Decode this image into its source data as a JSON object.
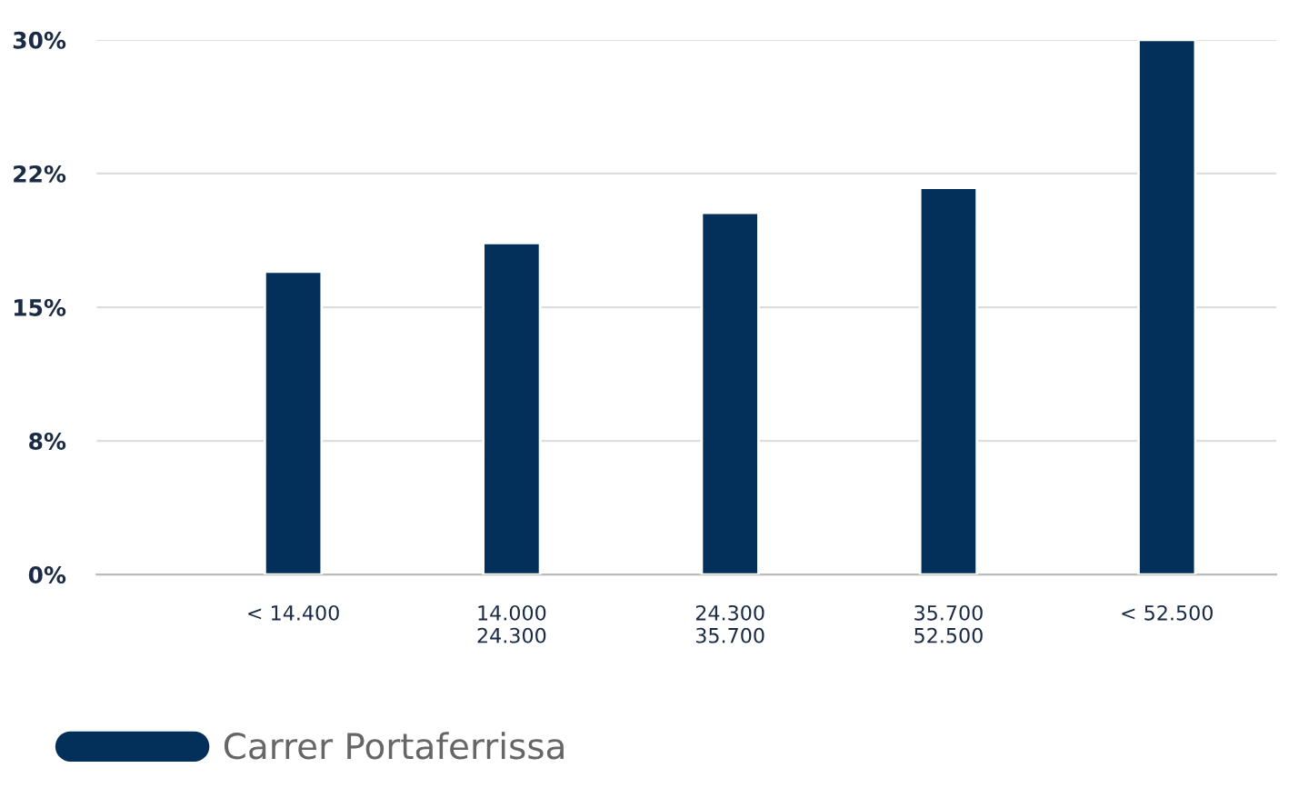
{
  "chart_data": {
    "type": "bar",
    "categories": [
      "< 14.400",
      "14.000\n24.300",
      "24.300\n35.700",
      "35.700\n52.500",
      "< 52.500"
    ],
    "series": [
      {
        "name": "Carrer Portaferrissa",
        "color": "#03305a",
        "values": [
          17.0,
          18.6,
          20.3,
          21.7,
          30.0
        ]
      }
    ],
    "ylim": [
      0,
      30
    ],
    "yticks": [
      {
        "value": 0,
        "label": "0%"
      },
      {
        "value": 7.5,
        "label": "8%"
      },
      {
        "value": 15,
        "label": "15%"
      },
      {
        "value": 22.5,
        "label": "22%"
      },
      {
        "value": 30,
        "label": "30%"
      }
    ],
    "grid": "y",
    "legend": "bottom left"
  }
}
